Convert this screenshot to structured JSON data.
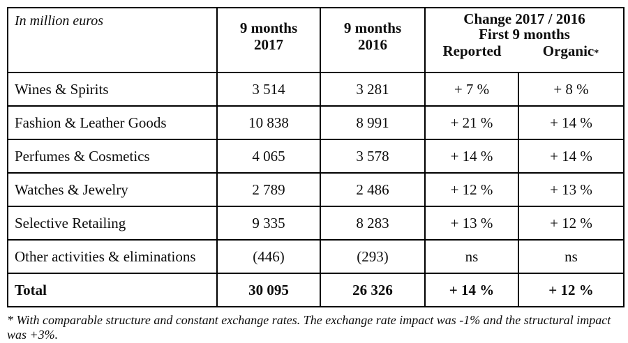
{
  "table": {
    "header": {
      "unit_label": "In million euros",
      "col_2017_line1": "9 months",
      "col_2017_line2": "2017",
      "col_2016_line1": "9 months",
      "col_2016_line2": "2016",
      "change_line1": "Change 2017 / 2016",
      "change_line2": "First 9 months",
      "reported_label": "Reported",
      "organic_label": "Organic",
      "organic_asterisk": "*"
    },
    "rows": [
      {
        "label": "Wines & Spirits",
        "y2017": "3 514",
        "y2016": "3 281",
        "reported": "+ 7 %",
        "organic": "+ 8 %"
      },
      {
        "label": "Fashion & Leather Goods",
        "y2017": "10 838",
        "y2016": "8 991",
        "reported": "+ 21 %",
        "organic": "+ 14 %"
      },
      {
        "label": "Perfumes & Cosmetics",
        "y2017": "4 065",
        "y2016": "3 578",
        "reported": "+ 14 %",
        "organic": "+ 14 %"
      },
      {
        "label": "Watches & Jewelry",
        "y2017": "2 789",
        "y2016": "2 486",
        "reported": "+ 12 %",
        "organic": "+ 13 %"
      },
      {
        "label": "Selective Retailing",
        "y2017": "9 335",
        "y2016": "8 283",
        "reported": "+ 13 %",
        "organic": "+ 12 %"
      },
      {
        "label": "Other activities & eliminations",
        "y2017": "(446)",
        "y2016": "(293)",
        "reported": "ns",
        "organic": "ns"
      }
    ],
    "total": {
      "label": "Total",
      "y2017": "30 095",
      "y2016": "26 326",
      "reported": "+ 14 %",
      "organic": "+ 12 %"
    }
  },
  "footnote": "* With comparable structure and constant exchange rates. The exchange rate impact was -1% and the structural impact was +3%.",
  "colors": {
    "border": "#000000",
    "text": "#0d0d0d",
    "background": "#ffffff"
  },
  "chart_data": {
    "type": "table",
    "title": "Change 2017 / 2016 First 9 months",
    "columns": [
      "In million euros",
      "9 months 2017",
      "9 months 2016",
      "Reported",
      "Organic"
    ],
    "rows": [
      [
        "Wines & Spirits",
        "3 514",
        "3 281",
        "+ 7 %",
        "+ 8 %"
      ],
      [
        "Fashion & Leather Goods",
        "10 838",
        "8 991",
        "+ 21 %",
        "+ 14 %"
      ],
      [
        "Perfumes & Cosmetics",
        "4 065",
        "3 578",
        "+ 14 %",
        "+ 14 %"
      ],
      [
        "Watches & Jewelry",
        "2 789",
        "2 486",
        "+ 12 %",
        "+ 13 %"
      ],
      [
        "Selective Retailing",
        "9 335",
        "8 283",
        "+ 13 %",
        "+ 12 %"
      ],
      [
        "Other activities & eliminations",
        "(446)",
        "(293)",
        "ns",
        "ns"
      ],
      [
        "Total",
        "30 095",
        "26 326",
        "+ 14 %",
        "+ 12 %"
      ]
    ]
  }
}
